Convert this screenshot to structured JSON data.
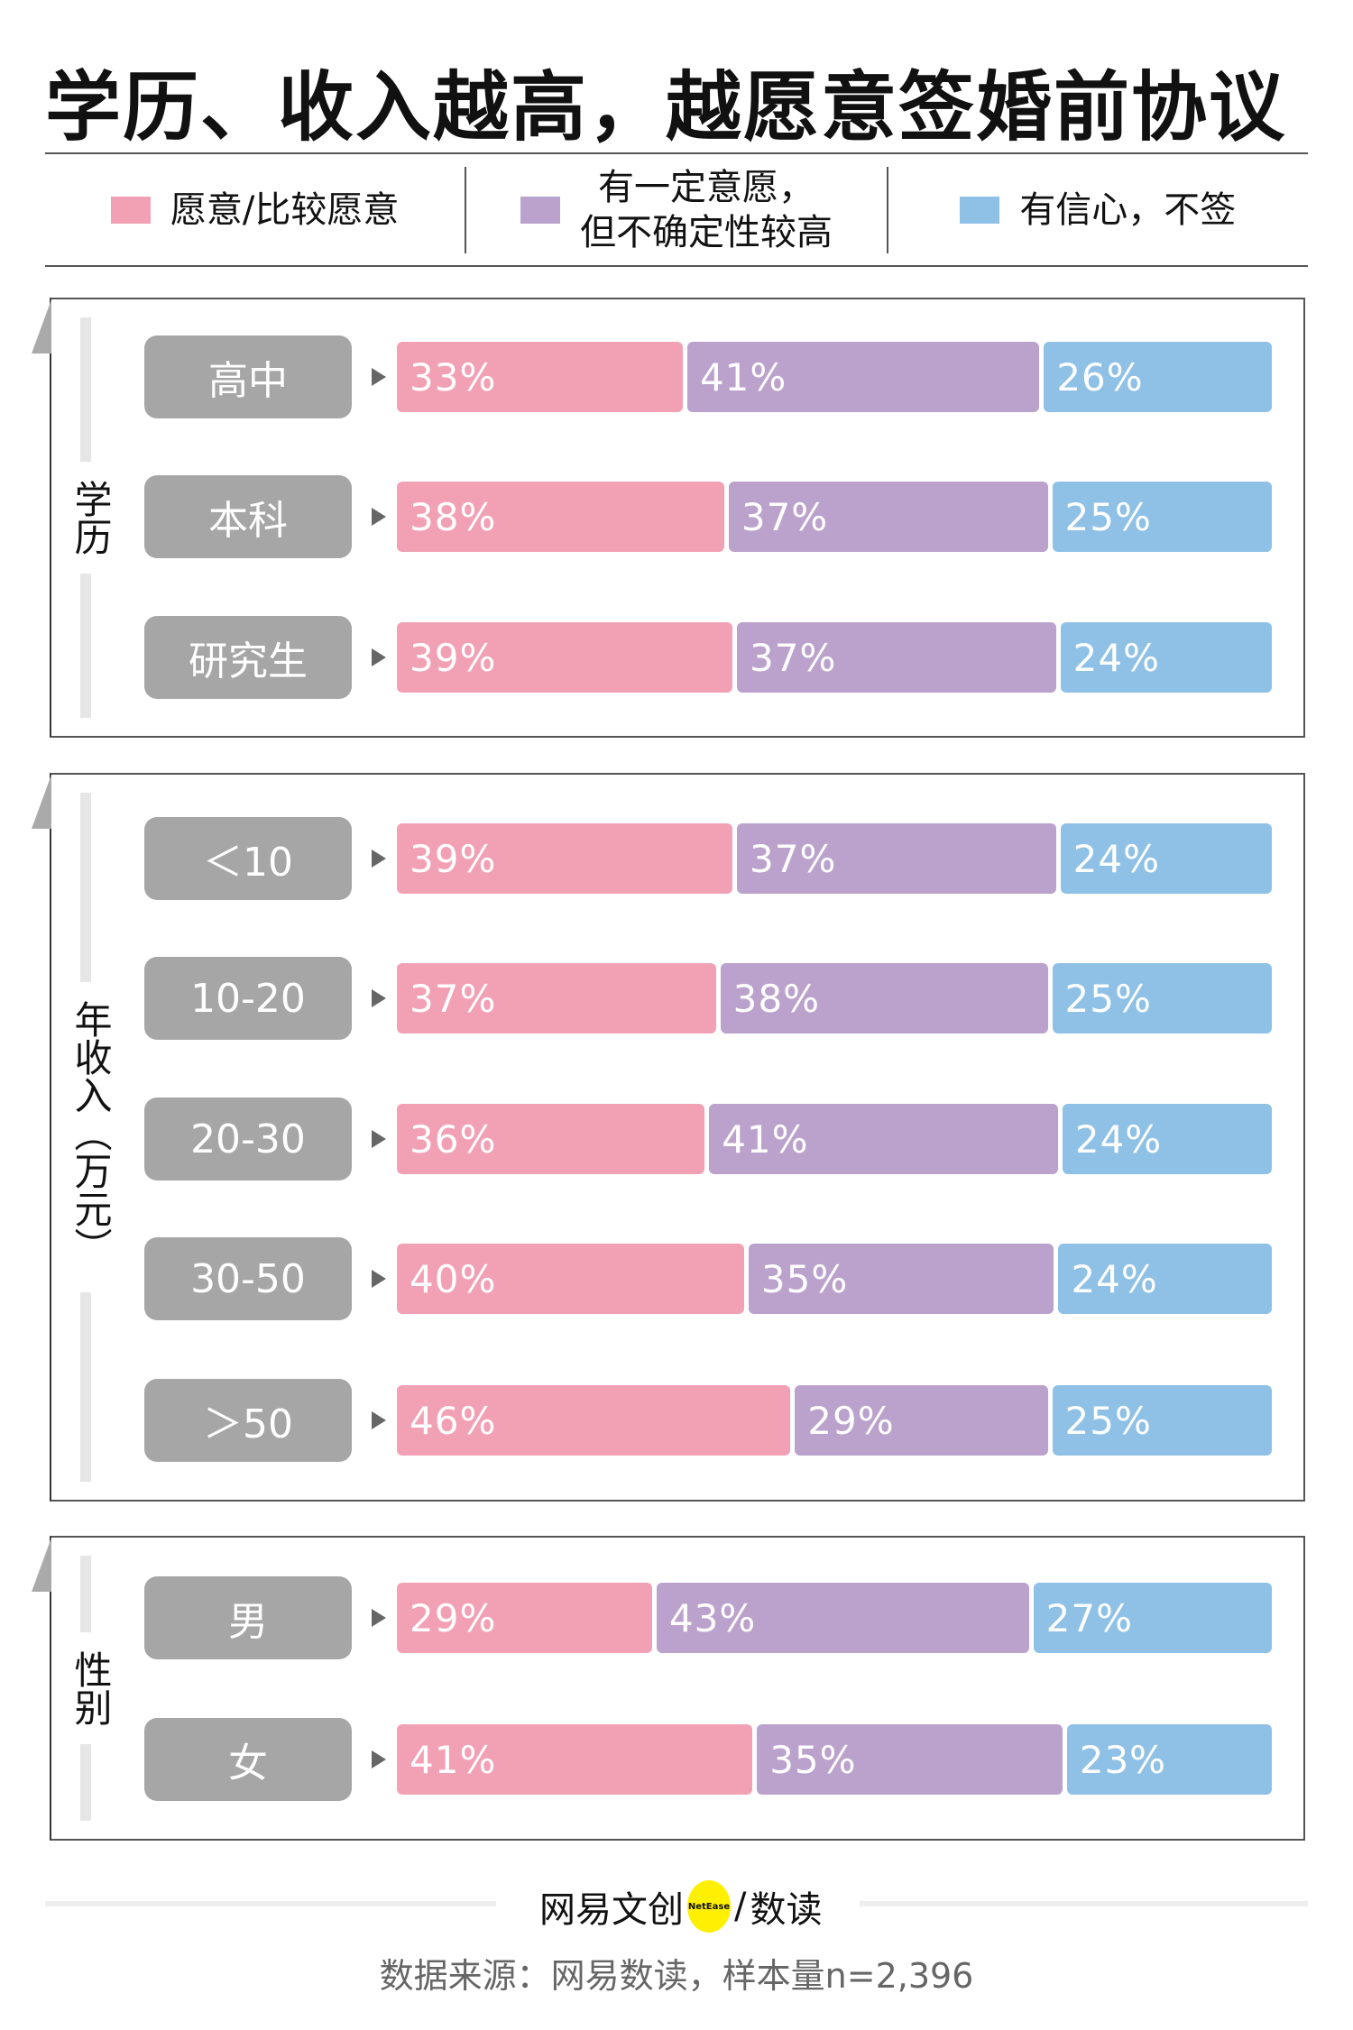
{
  "title": "学历、收入越高，越愿意签婚前协议",
  "legend": [
    {
      "label": "愿意/比较愿意",
      "color": "#f2a1b5"
    },
    {
      "label": "有一定意愿，但不确定性较高",
      "line1": "有一定意愿，",
      "line2": "但不确定性较高",
      "color": "#bba2cc"
    },
    {
      "label": "有信心，不签",
      "color": "#8fc1e6"
    }
  ],
  "chart_data": {
    "type": "bar",
    "stacked": true,
    "orientation": "horizontal",
    "title": "学历、收入越高，越愿意签婚前协议",
    "unit": "%",
    "series_names": [
      "愿意/比较愿意",
      "有一定意愿，但不确定性较高",
      "有信心，不签"
    ],
    "groups": [
      {
        "label": "学历",
        "rows": [
          {
            "category": "高中",
            "values": [
              33,
              41,
              26
            ]
          },
          {
            "category": "本科",
            "values": [
              38,
              37,
              25
            ]
          },
          {
            "category": "研究生",
            "values": [
              39,
              37,
              24
            ]
          }
        ]
      },
      {
        "label": "年收入（万元）",
        "rows": [
          {
            "category": "＜10",
            "values": [
              39,
              37,
              24
            ]
          },
          {
            "category": "10-20",
            "values": [
              37,
              38,
              25
            ]
          },
          {
            "category": "20-30",
            "values": [
              36,
              41,
              24
            ]
          },
          {
            "category": "30-50",
            "values": [
              40,
              35,
              24
            ]
          },
          {
            "category": "＞50",
            "values": [
              46,
              29,
              25
            ]
          }
        ]
      },
      {
        "label": "性别",
        "rows": [
          {
            "category": "男",
            "values": [
              29,
              43,
              27
            ]
          },
          {
            "category": "女",
            "values": [
              41,
              35,
              23
            ]
          }
        ]
      }
    ]
  },
  "footer": {
    "logo_text": "网易文创",
    "logo_badge": "NetEase",
    "logo_sub": "数读",
    "source": "数据来源：网易数读，样本量n=2,396"
  }
}
